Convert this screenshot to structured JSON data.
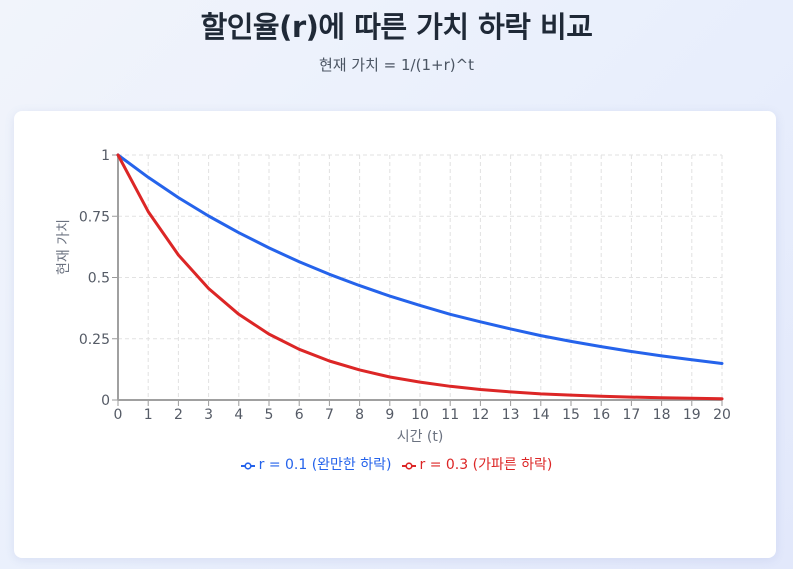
{
  "header": {
    "title": "할인율(r)에 따른 가치 하락 비교",
    "subtitle": "현재 가치 = 1/(1+r)^t"
  },
  "legend": {
    "items": [
      {
        "label": "r = 0.1 (완만한 하락)",
        "color": "#2563eb"
      },
      {
        "label": "r = 0.3 (가파른 하락)",
        "color": "#dc2626"
      }
    ]
  },
  "chart_data": {
    "type": "line",
    "title": "할인율(r)에 따른 가치 하락 비교",
    "subtitle": "현재 가치 = 1/(1+r)^t",
    "xlabel": "시간 (t)",
    "ylabel": "현재 가치",
    "x": [
      0,
      1,
      2,
      3,
      4,
      5,
      6,
      7,
      8,
      9,
      10,
      11,
      12,
      13,
      14,
      15,
      16,
      17,
      18,
      19,
      20
    ],
    "xticks": [
      "0",
      "1",
      "2",
      "3",
      "4",
      "5",
      "6",
      "7",
      "8",
      "9",
      "10",
      "11",
      "12",
      "13",
      "14",
      "15",
      "16",
      "17",
      "18",
      "19",
      "20"
    ],
    "yticks": [
      "0",
      "0.25",
      "0.5",
      "0.75",
      "1"
    ],
    "xlim": [
      0,
      20
    ],
    "ylim": [
      0,
      1
    ],
    "grid": true,
    "legend_position": "bottom",
    "series": [
      {
        "name": "r = 0.1 (완만한 하락)",
        "color": "#2563eb",
        "values": [
          1,
          0.909,
          0.826,
          0.751,
          0.683,
          0.621,
          0.564,
          0.513,
          0.467,
          0.424,
          0.386,
          0.35,
          0.319,
          0.29,
          0.263,
          0.239,
          0.218,
          0.198,
          0.18,
          0.164,
          0.149
        ]
      },
      {
        "name": "r = 0.3 (가파른 하락)",
        "color": "#dc2626",
        "values": [
          1,
          0.769,
          0.592,
          0.455,
          0.35,
          0.269,
          0.207,
          0.159,
          0.123,
          0.094,
          0.073,
          0.056,
          0.043,
          0.033,
          0.025,
          0.02,
          0.015,
          0.012,
          0.009,
          0.007,
          0.005
        ]
      }
    ]
  }
}
